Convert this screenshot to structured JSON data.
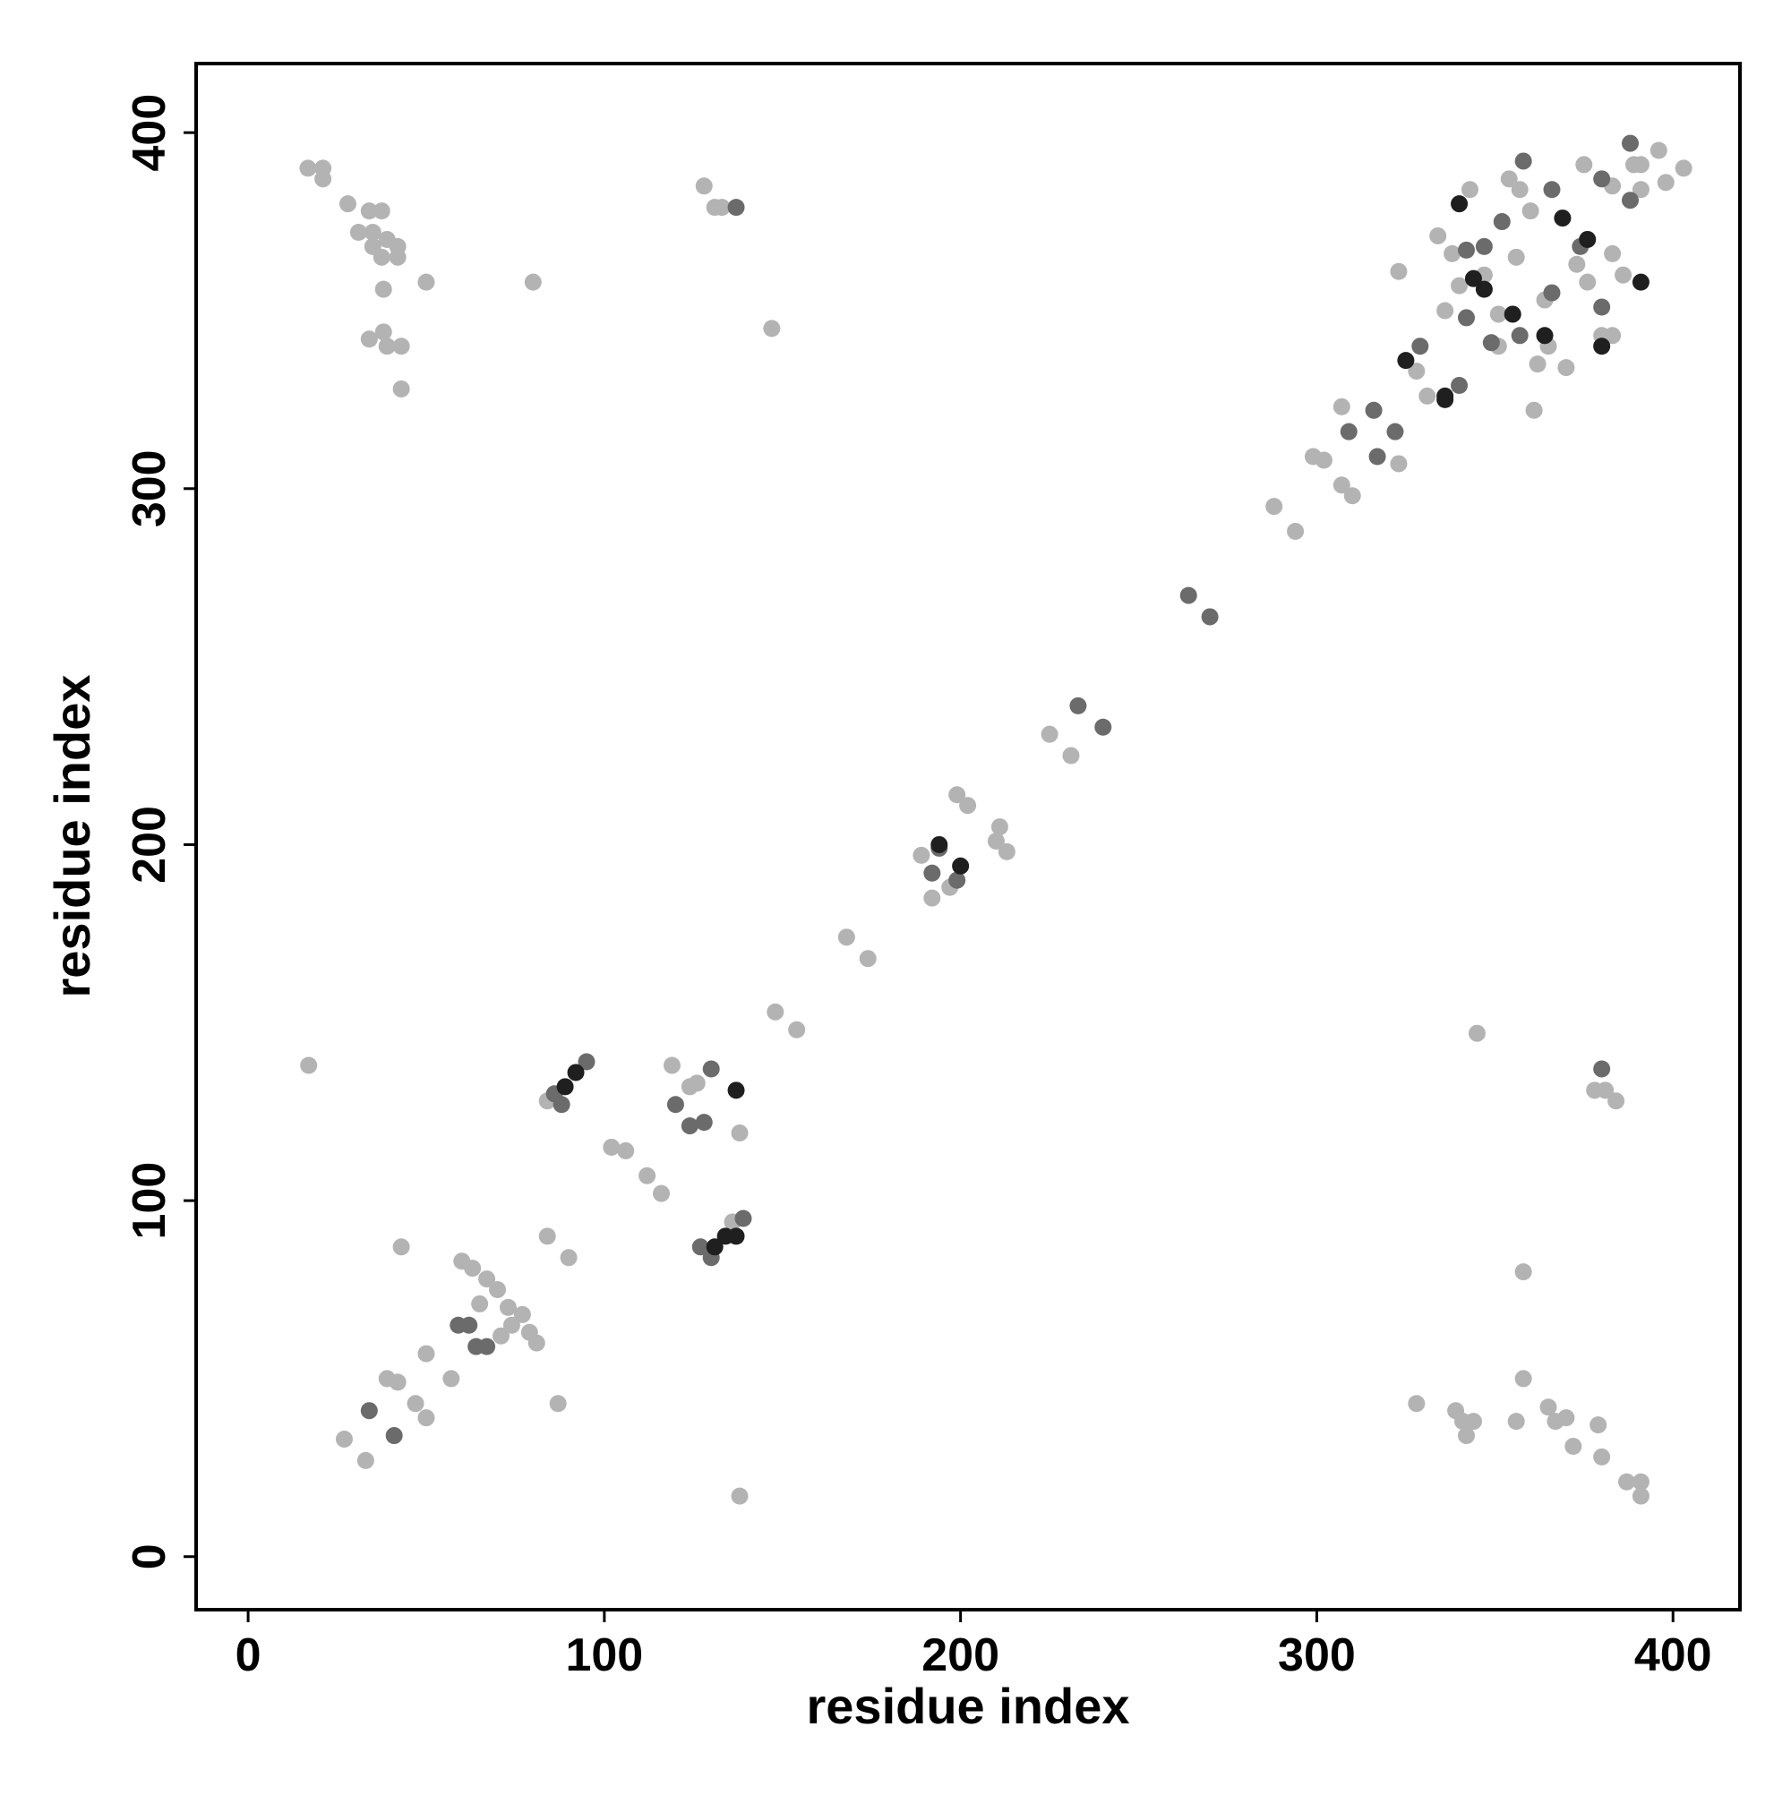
{
  "chart_data": {
    "type": "scatter",
    "xlabel": "residue index",
    "ylabel": "residue index",
    "xlim": [
      -14.6,
      418.8
    ],
    "ylim": [
      -14.9,
      419.4
    ],
    "xticks": [
      0,
      100,
      200,
      300,
      400
    ],
    "yticks": [
      0,
      100,
      200,
      300,
      400
    ],
    "series": [
      {
        "color": "#b3b3b3",
        "x": [
          16.8,
          21,
          21,
          28,
          31,
          34,
          37.5,
          35,
          39,
          35,
          37.5,
          42,
          42,
          38,
          50,
          34,
          38,
          39,
          43,
          43,
          80,
          147,
          128,
          131,
          133,
          328,
          339,
          341,
          344,
          342,
          345,
          356,
          358,
          358,
          365,
          367,
          370,
          372,
          379,
          380,
          387,
          391,
          391,
          378,
          381,
          384,
          17,
          138,
          27,
          33,
          39,
          42,
          47,
          50,
          50,
          57,
          43,
          84,
          90,
          87,
          60,
          63,
          67,
          70,
          65,
          73,
          77,
          79,
          81,
          74,
          71,
          102,
          106,
          112,
          116,
          119,
          124,
          126,
          138,
          136,
          148,
          154,
          168,
          174,
          84,
          192,
          197,
          189,
          199,
          202,
          211,
          213,
          210,
          225,
          231,
          288,
          294,
          299,
          302,
          307,
          310,
          307,
          323,
          323,
          328,
          331,
          334,
          338,
          343,
          347,
          336,
          351,
          357,
          360,
          364,
          365,
          362,
          370,
          373,
          376,
          383,
          386,
          380,
          383,
          361,
          375,
          383,
          389,
          391,
          396,
          403,
          398,
          391,
          340,
          351,
          354,
          356
        ],
        "values": [
          390,
          390,
          387,
          380,
          372,
          378,
          378,
          372,
          370,
          368,
          365,
          368,
          365,
          356,
          358,
          342,
          344,
          340,
          340,
          328,
          358,
          345,
          385,
          379,
          379,
          43,
          41,
          38,
          38,
          34,
          147,
          38,
          50,
          80,
          42,
          38,
          39,
          31,
          37,
          28,
          21,
          17,
          21,
          131,
          131,
          128,
          138,
          17,
          33,
          27,
          50,
          49,
          43,
          39,
          57,
          50,
          87,
          90,
          84,
          43,
          83,
          81,
          78,
          75,
          71,
          70,
          68,
          63,
          60,
          65,
          62,
          115,
          114,
          107,
          102,
          138,
          132,
          133,
          119,
          94,
          153,
          148,
          174,
          168,
          128,
          185,
          188,
          197,
          214,
          211,
          205,
          198,
          201,
          231,
          225,
          295,
          288,
          309,
          308,
          301,
          298,
          323,
          307,
          361,
          333,
          326,
          371,
          366,
          384,
          360,
          350,
          340,
          384,
          378,
          353,
          340,
          335,
          334,
          363,
          358,
          366,
          360,
          343,
          343,
          322,
          391,
          385,
          391,
          391,
          395,
          390,
          386,
          384,
          357,
          349,
          387,
          365
        ]
      },
      {
        "color": "#6b6b6b",
        "x": [
          137,
          380,
          34,
          41,
          59,
          67,
          62,
          64,
          86,
          95,
          88,
          120,
          124,
          128,
          130,
          127,
          139,
          130,
          192,
          194,
          199,
          233,
          240,
          264,
          270,
          309,
          316,
          317,
          322,
          329,
          340,
          342,
          347,
          352,
          358,
          366,
          374,
          380,
          388,
          388,
          349,
          357,
          366,
          342,
          380
        ],
        "values": [
          379,
          137,
          41,
          34,
          65,
          59,
          65,
          59,
          130,
          139,
          127,
          127,
          121,
          122,
          137,
          87,
          95,
          84,
          192,
          199,
          190,
          239,
          233,
          270,
          264,
          316,
          322,
          309,
          316,
          340,
          329,
          367,
          368,
          375,
          392,
          384,
          368,
          387,
          397,
          381,
          341,
          343,
          355,
          348,
          351
        ]
      },
      {
        "color": "#1f1f1f",
        "x": [
          89,
          92,
          137,
          131,
          134,
          137,
          194,
          200,
          325,
          336,
          340,
          347,
          355,
          369,
          376,
          391,
          380,
          336,
          364,
          344
        ],
        "values": [
          132,
          136,
          131,
          87,
          90,
          90,
          200,
          194,
          336,
          325,
          380,
          356,
          349,
          376,
          370,
          358,
          340,
          326,
          343,
          359
        ]
      }
    ]
  }
}
